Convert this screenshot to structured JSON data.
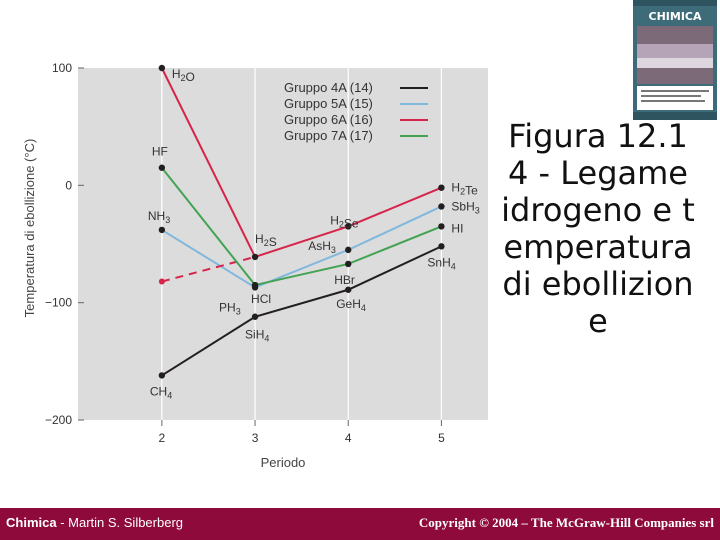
{
  "chart_data": {
    "type": "line",
    "ylabel": "Temperatura di ebollizione (°C)",
    "xlabel": "Periodo",
    "x": [
      2,
      3,
      4,
      5
    ],
    "xlim": [
      1.1,
      5.5
    ],
    "ylim": [
      -200,
      100
    ],
    "yticks": [
      100,
      0,
      -100,
      -200
    ],
    "ytick_labels": [
      "100",
      "0",
      "−100",
      "−200"
    ],
    "xtick_labels": [
      "2",
      "3",
      "4",
      "5"
    ],
    "legend_position": "top-right",
    "series": [
      {
        "name": "Gruppo 4A (14)",
        "color": "#231f20",
        "values": [
          -162,
          -112,
          -89,
          -52
        ],
        "labels": [
          "CH4",
          "SiH4",
          "GeH4",
          "SnH4"
        ]
      },
      {
        "name": "Gruppo 5A (15)",
        "color": "#7fb8dd",
        "values": [
          -38,
          -87,
          -55,
          -18
        ],
        "labels": [
          "NH3",
          "PH3",
          "AsH3",
          "SbH3"
        ]
      },
      {
        "name": "Gruppo 6A (16)",
        "color": "#d6244a",
        "values": [
          100,
          -61,
          -35,
          -2
        ],
        "labels": [
          "H2O",
          "H2S",
          "H2Se",
          "H2Te"
        ],
        "dashed_extrapolation": {
          "x": [
            2,
            3
          ],
          "values": [
            -82,
            -61
          ]
        }
      },
      {
        "name": "Gruppo 7A (17)",
        "color": "#43a353",
        "values": [
          15,
          -85,
          -67,
          -35
        ],
        "labels": [
          "HF",
          "HCl",
          "HBr",
          "HI"
        ]
      }
    ]
  },
  "caption": "Figura 12.14 - Legame idrogeno e temperatura di ebollizione",
  "book": {
    "title": "CHIMICA",
    "author": "Martin S. Silberberg"
  },
  "footer": {
    "left_bold": "Chimica",
    "left_rest": " - Martin S. Silberberg",
    "right": "Copyright © 2004 – The McGraw-Hill Companies srl"
  },
  "colors": {
    "plot_bg": "#dcdcdc",
    "footer_bg": "#8e0a3a"
  }
}
